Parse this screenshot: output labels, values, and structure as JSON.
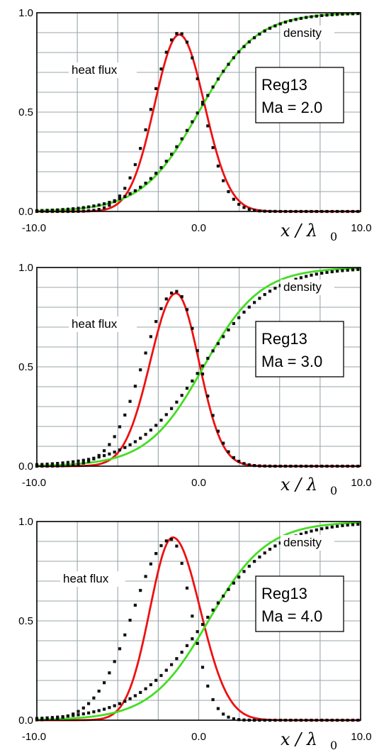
{
  "colors": {
    "heat_flux": "#ee1111",
    "density": "#44dd22",
    "dots": "#111111",
    "grid": "#9aa6aa"
  },
  "chart_data": [
    {
      "type": "line",
      "xlim": [
        -10.0,
        10.0
      ],
      "ylim": [
        0.0,
        1.0
      ],
      "x_tick_labels": [
        "-10.0",
        "0.0",
        "10.0"
      ],
      "y_tick_labels": [
        "0.0",
        "0.5",
        "1.0"
      ],
      "xlabel": "x / λ",
      "xlabel_sub": "0",
      "grid": true,
      "label_box": [
        "Reg13",
        "Ma = 2.0"
      ],
      "annotations": [
        "heat flux",
        "density"
      ],
      "series": [
        {
          "name": "heat flux",
          "style": "line",
          "color": "#ee1111",
          "peak_x": -1.2,
          "peak_y": 0.89,
          "width_left": 2.15,
          "width_right": 2.2
        },
        {
          "name": "density",
          "style": "line",
          "color": "#44dd22",
          "center_x": 0.0,
          "width": 1.75
        },
        {
          "name": "heat flux",
          "style": "dots",
          "peak_x": -1.2,
          "peak_y": 0.9,
          "width_left": 2.35,
          "width_right": 2.05
        },
        {
          "name": "density",
          "style": "dots",
          "center_x": -0.05,
          "width": 1.8
        }
      ]
    },
    {
      "type": "line",
      "xlim": [
        -10.0,
        10.0
      ],
      "ylim": [
        0.0,
        1.0
      ],
      "x_tick_labels": [
        "-10.0",
        "0.0",
        "10.0"
      ],
      "y_tick_labels": [
        "0.0",
        "0.5",
        "1.0"
      ],
      "xlabel": "x / λ",
      "xlabel_sub": "0",
      "grid": true,
      "label_box": [
        "Reg13",
        "Ma = 3.0"
      ],
      "annotations": [
        "heat flux",
        "density"
      ],
      "series": [
        {
          "name": "heat flux",
          "style": "line",
          "color": "#ee1111",
          "peak_x": -1.4,
          "peak_y": 0.87,
          "width_left": 2.25,
          "width_right": 2.0
        },
        {
          "name": "density",
          "style": "line",
          "color": "#44dd22",
          "center_x": 0.3,
          "width": 1.75
        },
        {
          "name": "heat flux",
          "style": "dots",
          "peak_x": -1.4,
          "peak_y": 0.88,
          "width_left": 2.85,
          "width_right": 2.05
        },
        {
          "name": "density",
          "style": "dots",
          "center_x": 0.2,
          "width": 2.1
        }
      ]
    },
    {
      "type": "line",
      "xlim": [
        -10.0,
        10.0
      ],
      "ylim": [
        0.0,
        1.0
      ],
      "x_tick_labels": [
        "-10.0",
        "0.0",
        "10.0"
      ],
      "y_tick_labels": [
        "0.0",
        "0.5",
        "1.0"
      ],
      "xlabel": "x / λ",
      "xlabel_sub": "0",
      "grid": true,
      "label_box": [
        "Reg13",
        "Ma = 4.0"
      ],
      "annotations": [
        "heat flux",
        "density"
      ],
      "series": [
        {
          "name": "heat flux",
          "style": "line",
          "color": "#ee1111",
          "peak_x": -1.6,
          "peak_y": 0.92,
          "width_left": 2.0,
          "width_right": 2.4
        },
        {
          "name": "density",
          "style": "line",
          "color": "#44dd22",
          "center_x": 0.6,
          "width": 1.8
        },
        {
          "name": "heat flux",
          "style": "dots",
          "peak_x": -1.7,
          "peak_y": 0.91,
          "width_left": 3.3,
          "width_right": 1.75
        },
        {
          "name": "density",
          "style": "dots",
          "center_x": 0.4,
          "width": 2.2
        }
      ]
    }
  ]
}
